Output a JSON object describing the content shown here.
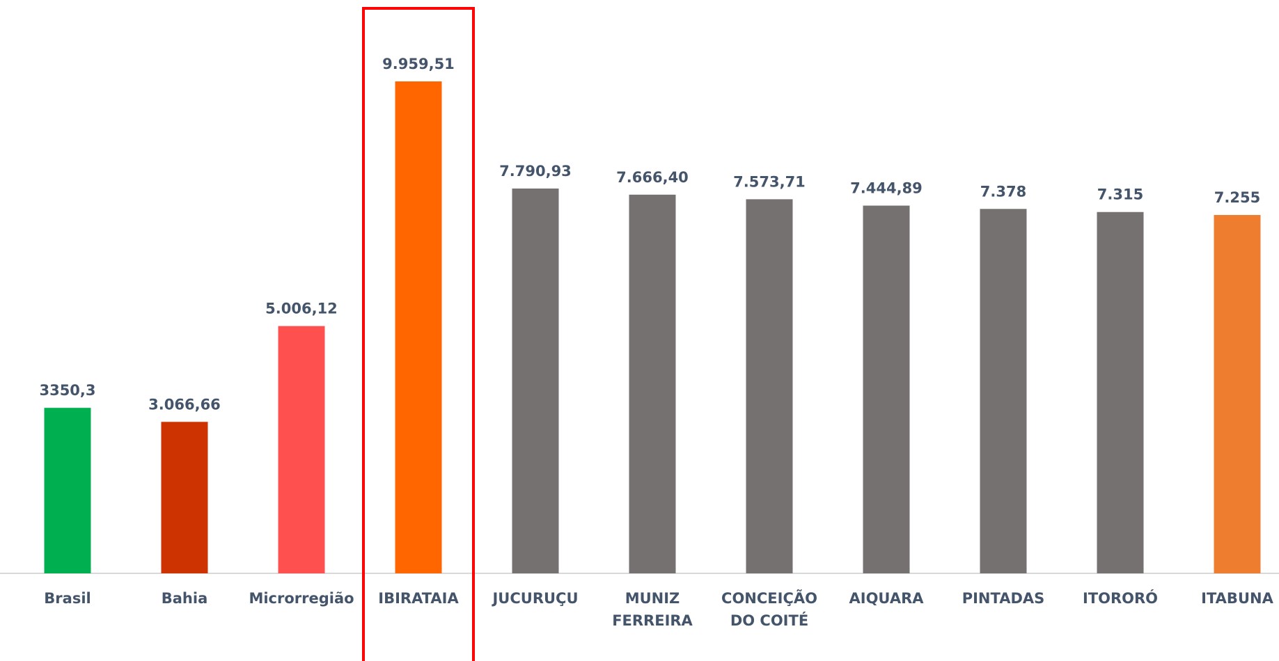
{
  "chart_data": {
    "type": "bar",
    "categories": [
      "Brasil",
      "Bahia",
      "Microrregião",
      "IBIRATAIA",
      "JUCURUÇU",
      "MUNIZ\nFERREIRA",
      "CONCEIÇÃO\nDO COITÉ",
      "AIQUARA",
      "PINTADAS",
      "ITORORÓ",
      "ITABUNA"
    ],
    "values": [
      3350.3,
      3066.66,
      5006.12,
      9959.51,
      7790.93,
      7666.4,
      7573.71,
      7444.89,
      7378,
      7315,
      7255
    ],
    "value_labels": [
      "3350,3",
      "3.066,66",
      "5.006,12",
      "9.959,51",
      "7.790,93",
      "7.666,40",
      "7.573,71",
      "7.444,89",
      "7.378",
      "7.315",
      "7.255"
    ],
    "colors": [
      "#00b050",
      "#cc3300",
      "#ff5050",
      "#ff6600",
      "#767171",
      "#767171",
      "#767171",
      "#767171",
      "#767171",
      "#767171",
      "#ef7d2f"
    ]
  }
}
